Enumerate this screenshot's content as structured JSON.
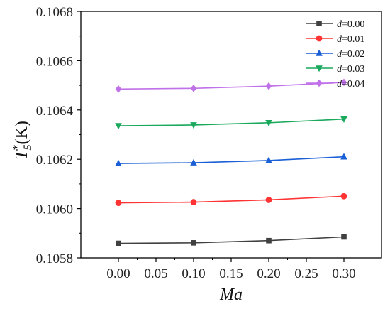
{
  "chart_data": {
    "type": "line",
    "xlabel": "Ma",
    "ylabel": "T5*(K)",
    "ylabel_parts": {
      "main": "T",
      "sub": "5",
      "sup": "*",
      "unit": "(K)"
    },
    "x": [
      0.0,
      0.1,
      0.2,
      0.3
    ],
    "xlim": [
      -0.05,
      0.35
    ],
    "ylim": [
      0.1058,
      0.1068
    ],
    "x_ticks": [
      "0.00",
      "0.05",
      "0.10",
      "0.15",
      "0.20",
      "0.25",
      "0.30"
    ],
    "x_tick_values": [
      0.0,
      0.05,
      0.1,
      0.15,
      0.2,
      0.25,
      0.3
    ],
    "y_ticks": [
      "0.1058",
      "0.1060",
      "0.1062",
      "0.1064",
      "0.1066",
      "0.1068"
    ],
    "y_tick_values": [
      0.1058,
      0.106,
      0.1062,
      0.1064,
      0.1066,
      0.1068
    ],
    "legend_position": "top-right",
    "grid": false,
    "series": [
      {
        "name": "d=0.00",
        "var": "d",
        "val": "=0.00",
        "color": "#404040",
        "marker": "square",
        "values": [
          0.105859,
          0.105861,
          0.10587,
          0.105885
        ]
      },
      {
        "name": "d=0.01",
        "var": "d",
        "val": "=0.01",
        "color": "#ff3333",
        "marker": "circle",
        "values": [
          0.106023,
          0.106026,
          0.106035,
          0.10605
        ]
      },
      {
        "name": "d=0.02",
        "var": "d",
        "val": "=0.02",
        "color": "#1a5fd6",
        "marker": "triangle-up",
        "values": [
          0.106183,
          0.106186,
          0.106195,
          0.10621
        ]
      },
      {
        "name": "d=0.03",
        "var": "d",
        "val": "=0.03",
        "color": "#19a85c",
        "marker": "triangle-down",
        "values": [
          0.106336,
          0.106339,
          0.106348,
          0.106363
        ]
      },
      {
        "name": "d=0.04",
        "var": "d",
        "val": "=0.04",
        "color": "#c070e8",
        "marker": "diamond",
        "values": [
          0.106485,
          0.106488,
          0.106497,
          0.106512
        ]
      }
    ]
  }
}
